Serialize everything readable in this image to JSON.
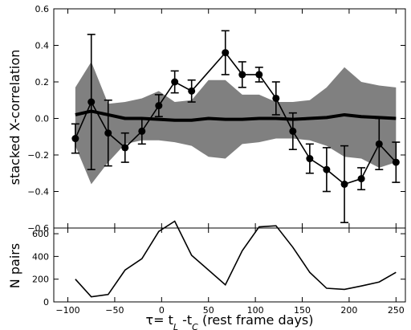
{
  "chart_data": [
    {
      "type": "line",
      "ylabel": "stacked X-correlation",
      "xlim": [
        -115,
        260
      ],
      "ylim": [
        -0.6,
        0.6
      ],
      "yticks": [
        -0.6,
        -0.4,
        -0.2,
        0.0,
        0.2,
        0.4,
        0.6
      ],
      "ytick_labels": [
        "−0.6",
        "−0.4",
        "−0.2",
        "0.0",
        "0.2",
        "0.4",
        "0.6"
      ],
      "band": {
        "color": "#808080",
        "x": [
          -92,
          -75,
          -57,
          -39,
          -21,
          -3,
          14,
          32,
          50,
          68,
          86,
          104,
          122,
          140,
          158,
          176,
          195,
          213,
          232,
          250
        ],
        "upper": [
          0.17,
          0.31,
          0.08,
          0.09,
          0.11,
          0.15,
          0.09,
          0.1,
          0.21,
          0.21,
          0.13,
          0.13,
          0.09,
          0.09,
          0.1,
          0.17,
          0.28,
          0.2,
          0.18,
          0.17
        ],
        "lower": [
          -0.15,
          -0.36,
          -0.24,
          -0.14,
          -0.12,
          -0.12,
          -0.13,
          -0.15,
          -0.21,
          -0.22,
          -0.14,
          -0.13,
          -0.11,
          -0.11,
          -0.12,
          -0.15,
          -0.21,
          -0.22,
          -0.27,
          -0.24
        ]
      },
      "mean_line": {
        "x": [
          -92,
          -75,
          -57,
          -39,
          -21,
          -3,
          14,
          32,
          50,
          68,
          86,
          104,
          122,
          140,
          158,
          176,
          195,
          213,
          232,
          250
        ],
        "y": [
          0.02,
          0.04,
          0.02,
          0.0,
          0.0,
          -0.005,
          -0.01,
          -0.01,
          0.0,
          -0.005,
          -0.005,
          0.0,
          0.0,
          -0.005,
          0.0,
          0.005,
          0.02,
          0.01,
          0.005,
          0.0
        ]
      },
      "points": {
        "x": [
          -92,
          -75,
          -57,
          -39,
          -21,
          -3,
          14,
          32,
          68,
          86,
          104,
          122,
          140,
          158,
          176,
          195,
          213,
          232,
          250
        ],
        "y": [
          -0.11,
          0.09,
          -0.08,
          -0.16,
          -0.07,
          0.07,
          0.2,
          0.15,
          0.36,
          0.24,
          0.24,
          0.11,
          -0.07,
          -0.22,
          -0.28,
          -0.36,
          -0.33,
          -0.14,
          -0.24
        ],
        "err": [
          0.08,
          0.37,
          0.18,
          0.08,
          0.07,
          0.06,
          0.06,
          0.06,
          0.12,
          0.07,
          0.04,
          0.09,
          0.1,
          0.08,
          0.12,
          0.21,
          0.06,
          0.14,
          0.11
        ]
      }
    },
    {
      "type": "line",
      "ylabel": "N pairs",
      "xlabel": "τ= t_L -t_C  (rest frame days)",
      "xlim": [
        -115,
        260
      ],
      "ylim": [
        0,
        650
      ],
      "xticks": [
        -100,
        -50,
        0,
        50,
        100,
        150,
        200,
        250
      ],
      "xtick_labels": [
        "−100",
        "−50",
        "0",
        "50",
        "100",
        "150",
        "200",
        "250"
      ],
      "yticks": [
        0,
        200,
        400,
        600
      ],
      "ytick_labels": [
        "0",
        "200",
        "400",
        "600"
      ],
      "x": [
        -92,
        -75,
        -57,
        -39,
        -21,
        -3,
        14,
        32,
        68,
        86,
        104,
        122,
        140,
        158,
        176,
        195,
        213,
        232,
        250
      ],
      "y": [
        200,
        45,
        65,
        280,
        380,
        620,
        710,
        410,
        150,
        450,
        660,
        670,
        480,
        260,
        120,
        110,
        140,
        175,
        260
      ]
    }
  ]
}
